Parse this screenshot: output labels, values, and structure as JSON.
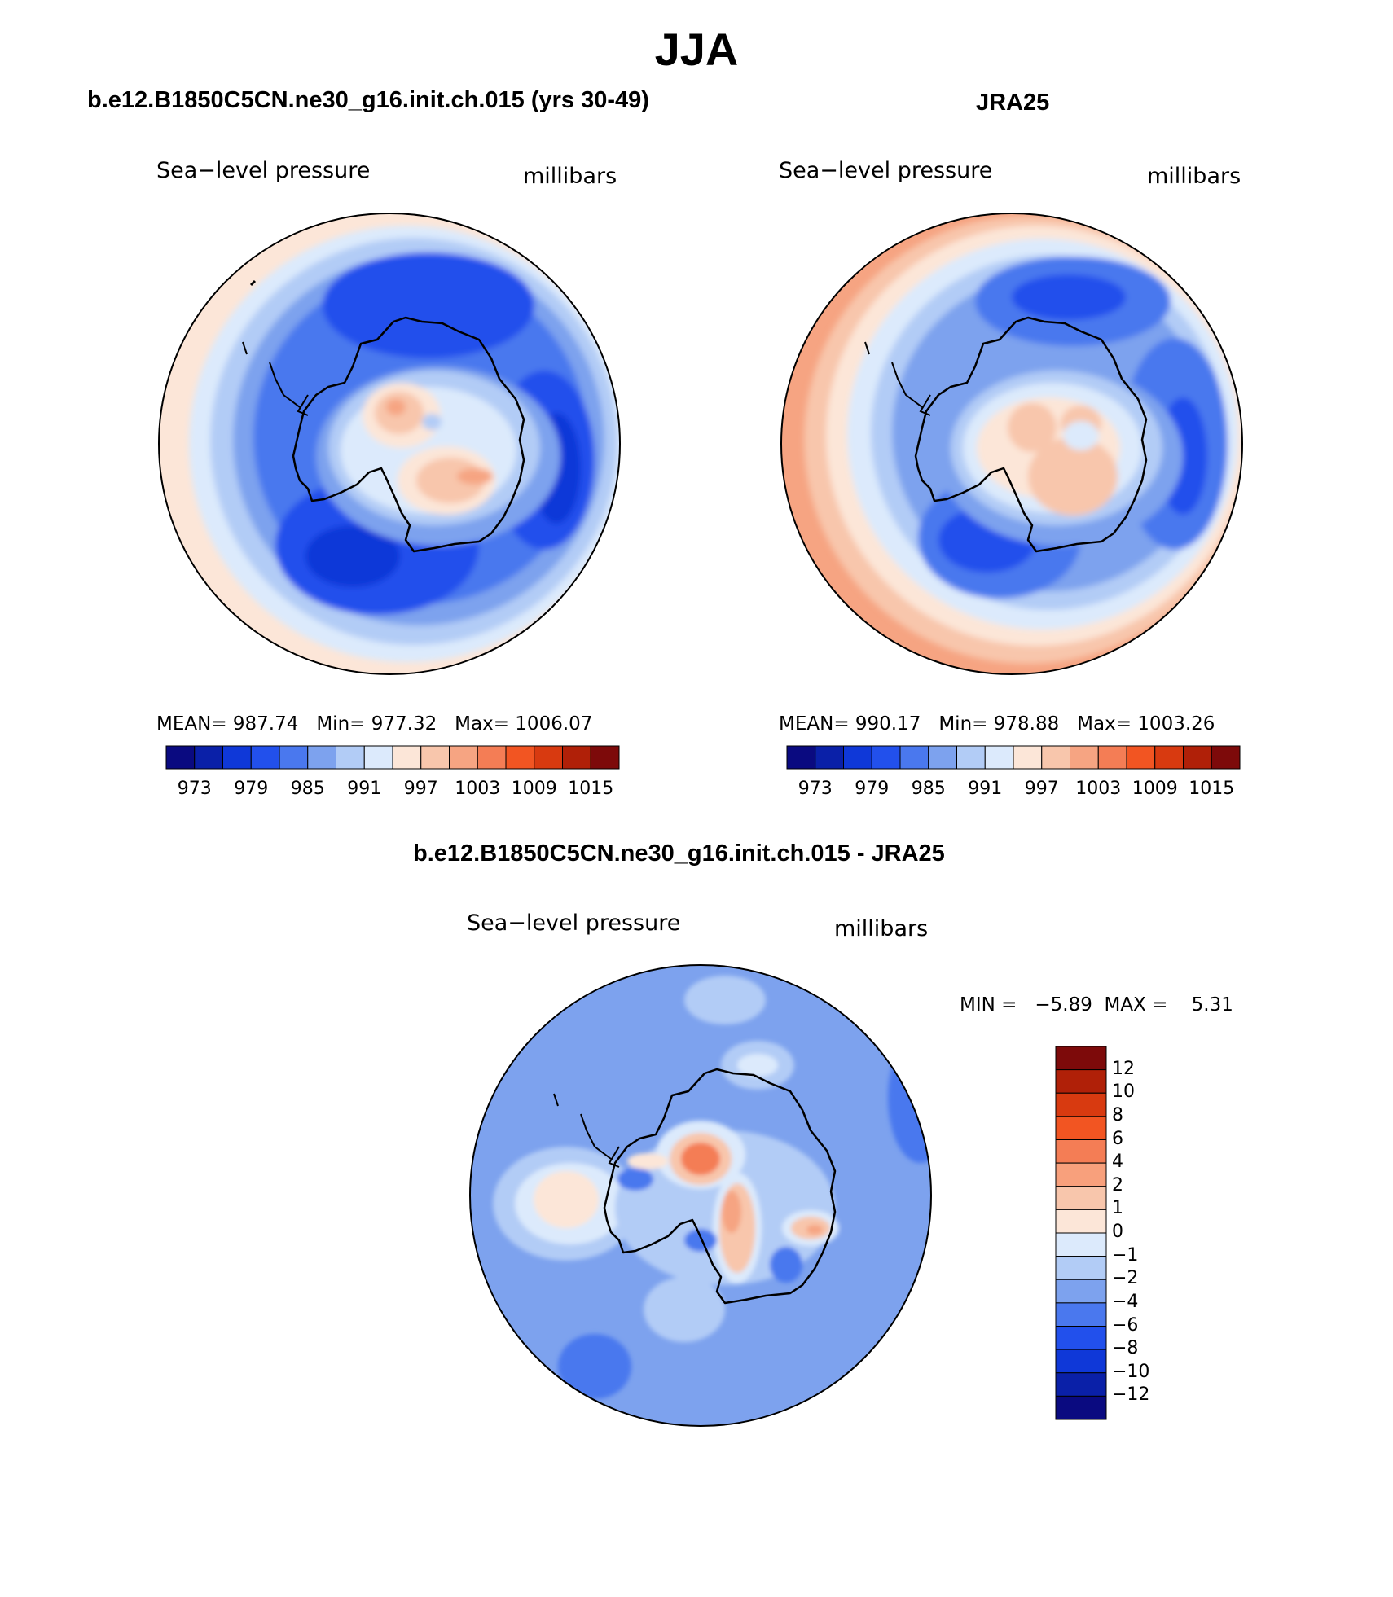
{
  "title": "JJA",
  "panels": [
    {
      "id": "model",
      "title": "b.e12.B1850C5CN.ne30_g16.init.ch.015 (yrs 30-49)",
      "variable": "Sea−level pressure",
      "units": "millibars",
      "stats": {
        "mean_label": "MEAN=",
        "mean": "987.74",
        "min_label": "Min=",
        "min": "977.32",
        "max_label": "Max=",
        "max": "1006.07"
      },
      "colorbar_labels": [
        "973",
        "979",
        "985",
        "991",
        "997",
        "1003",
        "1009",
        "1015"
      ]
    },
    {
      "id": "obs",
      "title": "JRA25",
      "variable": "Sea−level pressure",
      "units": "millibars",
      "stats": {
        "mean_label": "MEAN=",
        "mean": "990.17",
        "min_label": "Min=",
        "min": "978.88",
        "max_label": "Max=",
        "max": "1003.26"
      },
      "colorbar_labels": [
        "973",
        "979",
        "985",
        "991",
        "997",
        "1003",
        "1009",
        "1015"
      ]
    }
  ],
  "difference": {
    "title": "b.e12.B1850C5CN.ne30_g16.init.ch.015 - JRA25",
    "variable": "Sea−level pressure",
    "units": "millibars",
    "min_label": "MIN =",
    "min": "−5.89",
    "max_label": "MAX =",
    "max": "5.31",
    "colorbar_labels": [
      "12",
      "10",
      "8",
      "6",
      "4",
      "2",
      "1",
      "0",
      "−1",
      "−2",
      "−4",
      "−6",
      "−8",
      "−10",
      "−12"
    ]
  },
  "colors": {
    "abs_scale": [
      "#0a0a80",
      "#0a20a8",
      "#0f38d8",
      "#2250ec",
      "#4a78ee",
      "#7da2ee",
      "#b2ccf6",
      "#dceafc",
      "#fce6d8",
      "#f8c6ac",
      "#f6a482",
      "#f47d55",
      "#f25522",
      "#d83a10",
      "#b02008",
      "#7d0a0a"
    ],
    "diff_scale": [
      "#7d0a0a",
      "#b02008",
      "#d83a10",
      "#f25522",
      "#f47d55",
      "#f8a07c",
      "#f8c6ac",
      "#fce6d8",
      "#dceafc",
      "#b2ccf6",
      "#7da2ee",
      "#4a78ee",
      "#2250ec",
      "#0f38d8",
      "#0a20a8",
      "#0a0a80"
    ]
  }
}
